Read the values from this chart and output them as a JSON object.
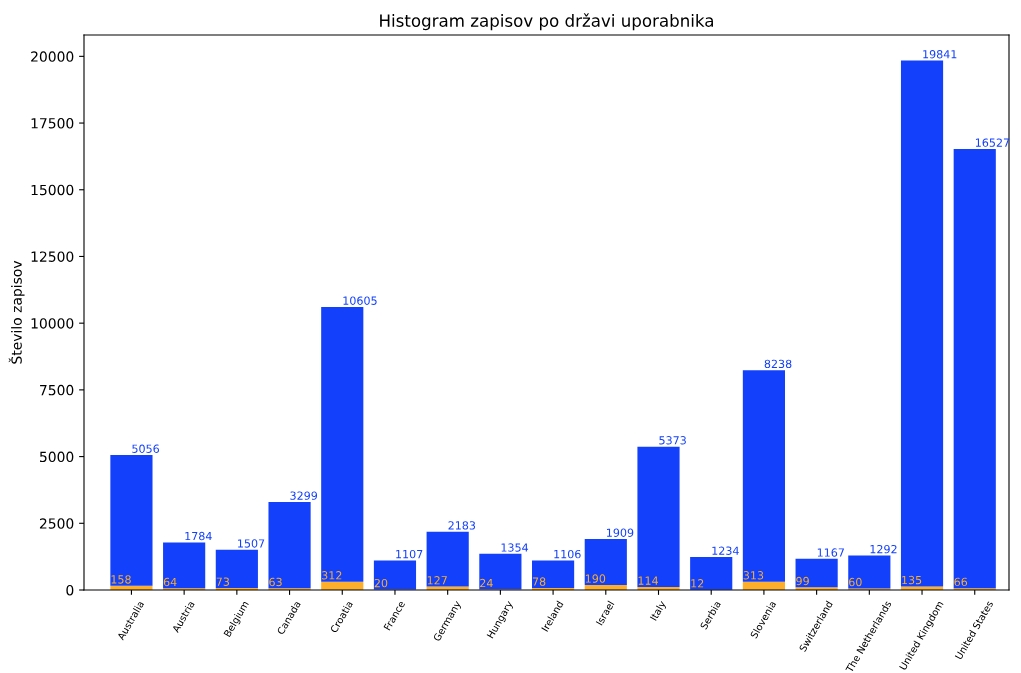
{
  "chart_data": {
    "type": "bar",
    "title": "Histogram zapisov po državi uporabnika",
    "ylabel": "Število zapisov",
    "categories": [
      "Australia",
      "Austria",
      "Belgium",
      "Canada",
      "Croatia",
      "France",
      "Germany",
      "Hungary",
      "Ireland",
      "Israel",
      "Italy",
      "Serbia",
      "Slovenia",
      "Switzerland",
      "The Netherlands",
      "United Kingdom",
      "United States"
    ],
    "stacked": true,
    "series": [
      {
        "color": "#fdae2a",
        "values": [
          158,
          64,
          73,
          63,
          312,
          20,
          127,
          24,
          78,
          190,
          114,
          12,
          313,
          99,
          60,
          135,
          66
        ],
        "value_labels": [
          "158",
          "64",
          "73",
          "63",
          "312",
          "20",
          "127",
          "24",
          "78",
          "190",
          "114",
          "12",
          "313",
          "99",
          "60",
          "135",
          "66"
        ]
      },
      {
        "color": "#1340fb",
        "values": [
          4898,
          1720,
          1434,
          3236,
          10293,
          1087,
          2056,
          1330,
          1028,
          1719,
          5259,
          1222,
          7925,
          1068,
          1232,
          19706,
          16461
        ]
      }
    ],
    "totals": [
      "5056",
      "1784",
      "1507",
      "3299",
      "10605",
      "1107",
      "2183",
      "1354",
      "1106",
      "1909",
      "5373",
      "1234",
      "8238",
      "1167",
      "1292",
      "19841",
      "16527"
    ],
    "ylim": [
      0,
      20800
    ],
    "yticks": [
      0,
      2500,
      5000,
      7500,
      10000,
      12500,
      15000,
      17500,
      20000
    ],
    "grid": false,
    "legend": false
  }
}
